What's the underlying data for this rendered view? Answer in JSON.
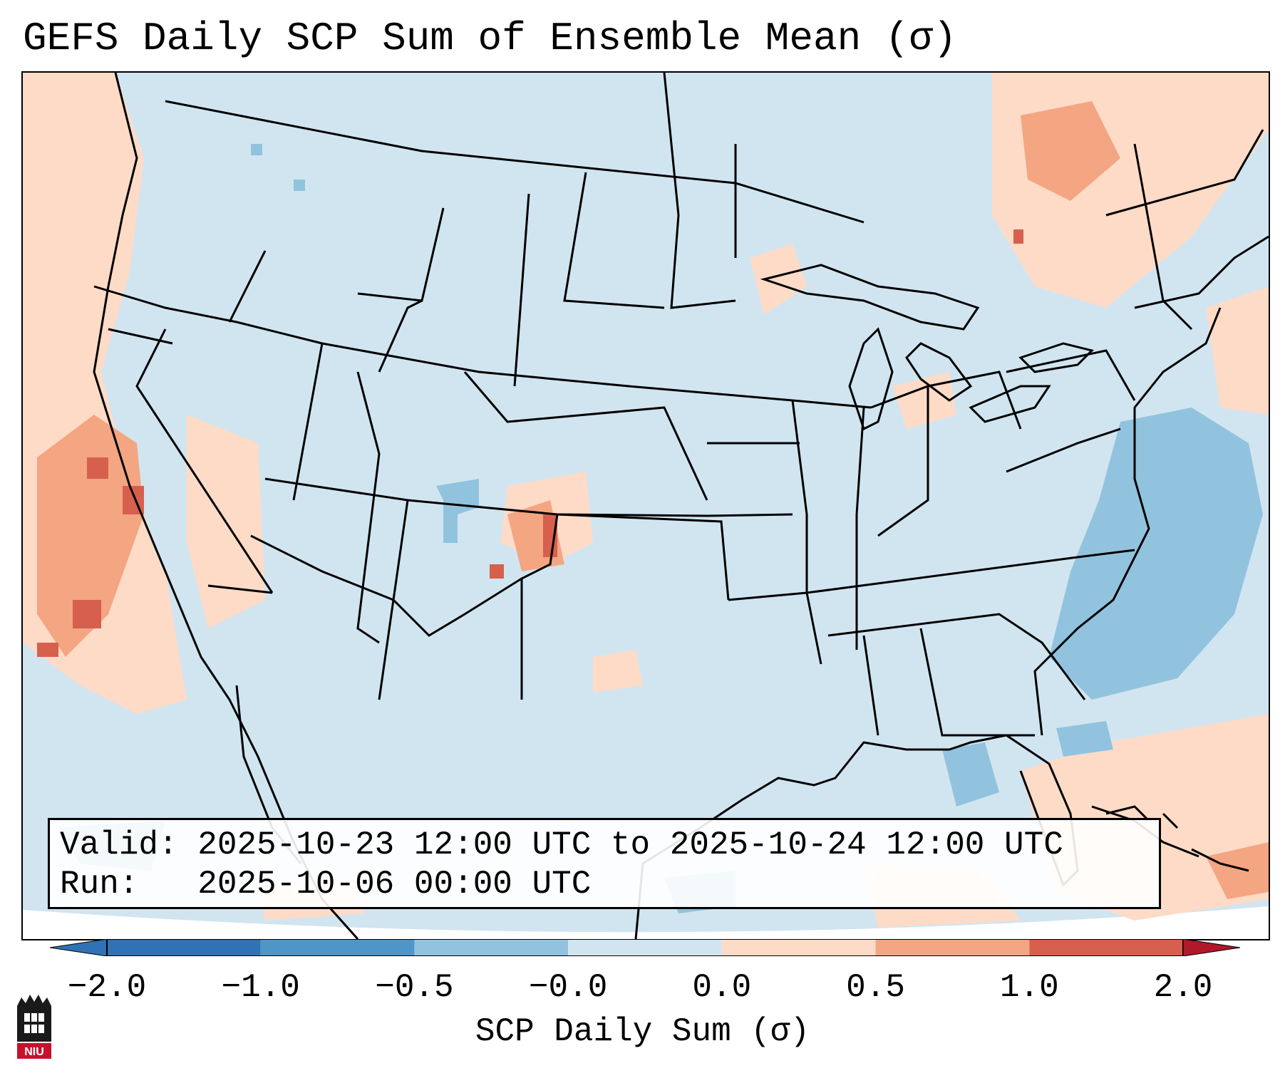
{
  "title": "GEFS Daily SCP Sum of Ensemble Mean (σ)",
  "info": {
    "valid_line": "Valid: 2025-10-23 12:00 UTC to 2025-10-24 12:00 UTC",
    "run_line": "Run:   2025-10-06 00:00 UTC"
  },
  "colorbar": {
    "label": "SCP Daily Sum (σ)",
    "ticks": [
      "−2.0",
      "−1.0",
      "−0.5",
      "−0.0",
      "0.0",
      "0.5",
      "1.0",
      "2.0"
    ],
    "colors": [
      "#2f72b5",
      "#4d96c9",
      "#92c3de",
      "#d1e5f0",
      "#fddbc7",
      "#f4a582",
      "#d6604d",
      "#b2182b"
    ]
  },
  "logo": {
    "text": "NIU",
    "name": "niu-logo"
  },
  "map": {
    "region": "CONUS",
    "background_color": "#d1e5f0",
    "features": [
      "state-borders",
      "coastlines",
      "great-lakes"
    ]
  }
}
